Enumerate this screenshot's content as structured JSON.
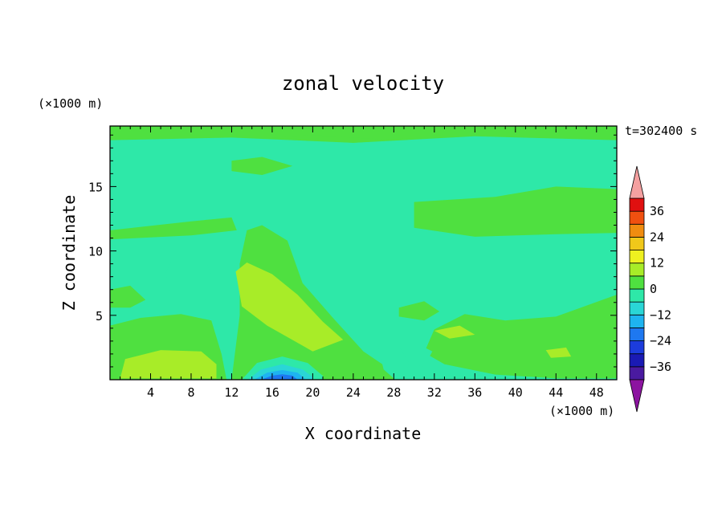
{
  "chart_data": {
    "type": "heatmap",
    "title": "zonal velocity",
    "xlabel": "X coordinate",
    "ylabel": "Z coordinate",
    "x_unit": "(×1000 m)",
    "y_unit": "(×1000 m)",
    "time_label": "t=302400 s",
    "xlim": [
      0,
      50
    ],
    "ylim": [
      0,
      19.7
    ],
    "x_ticks": [
      4,
      8,
      12,
      16,
      20,
      24,
      28,
      32,
      36,
      40,
      44,
      48
    ],
    "y_ticks": [
      5,
      10,
      15
    ],
    "colorbar": {
      "levels": [
        -42,
        -36,
        -30,
        -24,
        -18,
        -12,
        -6,
        0,
        6,
        12,
        18,
        24,
        30,
        36,
        42
      ],
      "tick_labels": [
        "36",
        "24",
        "12",
        "0",
        "−12",
        "−24",
        "−36"
      ],
      "tick_values": [
        36,
        24,
        12,
        0,
        -12,
        -24,
        -36
      ],
      "colors": [
        "#4a1aa0",
        "#1a1ab4",
        "#1c3cdc",
        "#1e78f0",
        "#1eb4f0",
        "#2ad6d6",
        "#2ee8a8",
        "#4fe040",
        "#a8ec28",
        "#eef020",
        "#f0c81a",
        "#f08c10",
        "#f05010",
        "#e01010"
      ],
      "under_color": "#8c14a0",
      "over_color": "#f4a0a0"
    },
    "regions": [
      {
        "value": 3,
        "points": [
          [
            0,
            18.6
          ],
          [
            12,
            18.8
          ],
          [
            24,
            18.4
          ],
          [
            36,
            18.9
          ],
          [
            50,
            18.6
          ],
          [
            50,
            19.7
          ],
          [
            0,
            19.7
          ]
        ]
      },
      {
        "value": 3,
        "points": [
          [
            0,
            11.6
          ],
          [
            8,
            12.3
          ],
          [
            12,
            12.6
          ],
          [
            12.5,
            11.6
          ],
          [
            8,
            11.2
          ],
          [
            0,
            10.9
          ]
        ]
      },
      {
        "value": 3,
        "points": [
          [
            30,
            13.8
          ],
          [
            38,
            14.2
          ],
          [
            44,
            15.0
          ],
          [
            50,
            14.8
          ],
          [
            50,
            11.4
          ],
          [
            44,
            11.3
          ],
          [
            36,
            11.1
          ],
          [
            30,
            11.8
          ]
        ]
      },
      {
        "value": 3,
        "points": [
          [
            12,
            0
          ],
          [
            12.8,
            5
          ],
          [
            12.8,
            9
          ],
          [
            13.5,
            11.6
          ],
          [
            15,
            12
          ],
          [
            17.5,
            10.8
          ],
          [
            19,
            7.5
          ],
          [
            22,
            4.8
          ],
          [
            25,
            2.2
          ],
          [
            28,
            0.6
          ],
          [
            28,
            0
          ]
        ]
      },
      {
        "value": 3,
        "points": [
          [
            0,
            0
          ],
          [
            0,
            4.2
          ],
          [
            3,
            4.8
          ],
          [
            7,
            5.1
          ],
          [
            10,
            4.6
          ],
          [
            11,
            2
          ],
          [
            11.5,
            0
          ]
        ]
      },
      {
        "value": 3,
        "points": [
          [
            0,
            7
          ],
          [
            2,
            7.3
          ],
          [
            3.5,
            6.2
          ],
          [
            2,
            5.6
          ],
          [
            0,
            5.6
          ]
        ]
      },
      {
        "value": 3,
        "points": [
          [
            28.5,
            5.6
          ],
          [
            31,
            6.1
          ],
          [
            32.5,
            5.3
          ],
          [
            31,
            4.6
          ],
          [
            28.5,
            4.9
          ]
        ]
      },
      {
        "value": 3,
        "points": [
          [
            31,
            2.1
          ],
          [
            32,
            3.9
          ],
          [
            35,
            5.1
          ],
          [
            39,
            4.6
          ],
          [
            44,
            4.9
          ],
          [
            50,
            6.6
          ],
          [
            50,
            0.1
          ],
          [
            44,
            0.1
          ],
          [
            38,
            0.4
          ],
          [
            33,
            1.2
          ]
        ]
      },
      {
        "value": 3,
        "points": [
          [
            12,
            17
          ],
          [
            15,
            17.3
          ],
          [
            18,
            16.6
          ],
          [
            15,
            15.9
          ],
          [
            12,
            16.2
          ]
        ]
      },
      {
        "value": 3,
        "points": [
          [
            16,
            18.8
          ],
          [
            24,
            18.4
          ],
          [
            28,
            18.6
          ],
          [
            20,
            19.0
          ]
        ]
      },
      {
        "value": 9,
        "points": [
          [
            12.4,
            8.4
          ],
          [
            13.5,
            9.1
          ],
          [
            16,
            8.2
          ],
          [
            18.5,
            6.6
          ],
          [
            21,
            4.5
          ],
          [
            23,
            3.1
          ],
          [
            20,
            2.2
          ],
          [
            15.5,
            4.2
          ],
          [
            13,
            5.7
          ]
        ]
      },
      {
        "value": 9,
        "points": [
          [
            1,
            0.1
          ],
          [
            1.5,
            1.6
          ],
          [
            5,
            2.3
          ],
          [
            9,
            2.2
          ],
          [
            10.5,
            1.2
          ],
          [
            10.5,
            0.1
          ]
        ]
      },
      {
        "value": 9,
        "points": [
          [
            32,
            3.8
          ],
          [
            34.5,
            4.2
          ],
          [
            36,
            3.5
          ],
          [
            33.5,
            3.2
          ]
        ]
      },
      {
        "value": 9,
        "points": [
          [
            43,
            2.3
          ],
          [
            45,
            2.5
          ],
          [
            45.5,
            1.8
          ],
          [
            43.5,
            1.7
          ]
        ]
      },
      {
        "value": -3,
        "points": [
          [
            5.5,
            8.3
          ],
          [
            6,
            9.1
          ],
          [
            9.5,
            9.1
          ],
          [
            10.3,
            7.6
          ],
          [
            9.3,
            6.1
          ],
          [
            6,
            6.2
          ]
        ]
      },
      {
        "value": -3,
        "points": [
          [
            26.5,
            2.4
          ],
          [
            27,
            0.8
          ],
          [
            28,
            0.1
          ],
          [
            29,
            0.1
          ],
          [
            29.5,
            1.3
          ],
          [
            28.5,
            2.6
          ]
        ]
      },
      {
        "value": -3,
        "points": [
          [
            30,
            1.2
          ],
          [
            30.8,
            2.6
          ],
          [
            31.8,
            2.2
          ],
          [
            31,
            1.0
          ]
        ]
      },
      {
        "value": -3,
        "points": [
          [
            13,
            0
          ],
          [
            14.5,
            1.3
          ],
          [
            17,
            1.8
          ],
          [
            19.5,
            1.3
          ],
          [
            21,
            0.3
          ],
          [
            21,
            0
          ]
        ]
      },
      {
        "value": -9,
        "points": [
          [
            13.6,
            0
          ],
          [
            14.9,
            0.8
          ],
          [
            17,
            1.2
          ],
          [
            19,
            0.8
          ],
          [
            20,
            0.2
          ],
          [
            20,
            0
          ]
        ]
      },
      {
        "value": -15,
        "points": [
          [
            14.2,
            0
          ],
          [
            15.5,
            0.55
          ],
          [
            17,
            0.75
          ],
          [
            18.5,
            0.55
          ],
          [
            19.2,
            0.1
          ],
          [
            19.2,
            0
          ]
        ]
      },
      {
        "value": -21,
        "points": [
          [
            14.9,
            0
          ],
          [
            16,
            0.32
          ],
          [
            17,
            0.42
          ],
          [
            18,
            0.32
          ],
          [
            18.5,
            0
          ]
        ]
      }
    ]
  }
}
